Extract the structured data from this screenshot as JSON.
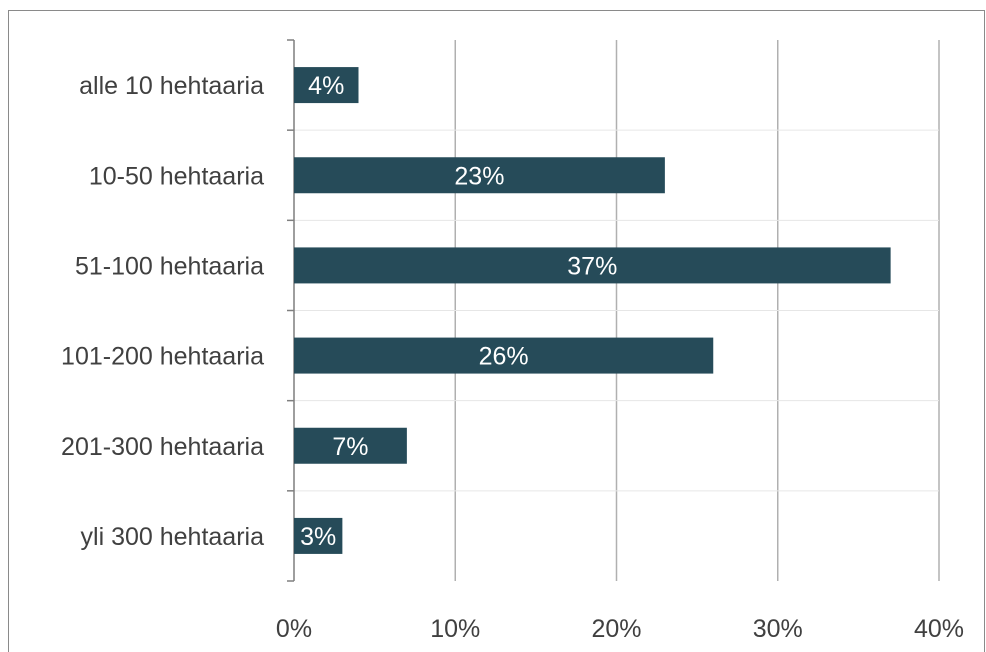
{
  "colors": {
    "bar": "#264b59",
    "grid": "#b0b0b0",
    "axis": "#7f7f7f",
    "text": "#404040",
    "bar_label": "#ffffff"
  },
  "chart_data": {
    "type": "bar",
    "orientation": "horizontal",
    "categories": [
      "alle 10 hehtaaria",
      "10-50 hehtaaria",
      "51-100 hehtaaria",
      "101-200 hehtaaria",
      "201-300 hehtaaria",
      "yli 300 hehtaaria"
    ],
    "values": [
      4,
      23,
      37,
      26,
      7,
      3
    ],
    "data_labels": [
      "4%",
      "23%",
      "37%",
      "26%",
      "7%",
      "3%"
    ],
    "xlim": [
      0,
      40
    ],
    "xticks": [
      0,
      10,
      20,
      30,
      40
    ],
    "xtick_labels": [
      "0%",
      "10%",
      "20%",
      "30%",
      "40%"
    ],
    "grid": true,
    "legend": "none"
  }
}
